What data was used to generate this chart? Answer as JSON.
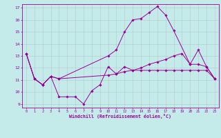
{
  "xlabel": "Windchill (Refroidissement éolien,°C)",
  "xlim": [
    -0.5,
    23.5
  ],
  "ylim": [
    8.7,
    17.3
  ],
  "xticks": [
    0,
    1,
    2,
    3,
    4,
    5,
    6,
    7,
    8,
    9,
    10,
    11,
    12,
    13,
    14,
    15,
    16,
    17,
    18,
    19,
    20,
    21,
    22,
    23
  ],
  "yticks": [
    9,
    10,
    11,
    12,
    13,
    14,
    15,
    16,
    17
  ],
  "background_color": "#c5eaea",
  "line_color": "#990099",
  "grid_color": "#b0c8c8",
  "line1_x": [
    0,
    1,
    2,
    3,
    4,
    5,
    6,
    7,
    8,
    9,
    10,
    11,
    12,
    13,
    14,
    15,
    16,
    17,
    18,
    19,
    20,
    21,
    22,
    23
  ],
  "line1_y": [
    13.2,
    11.1,
    10.6,
    11.3,
    9.6,
    9.6,
    9.6,
    9.0,
    10.1,
    10.6,
    12.1,
    11.5,
    12.1,
    11.8,
    11.8,
    11.8,
    11.8,
    11.8,
    11.8,
    11.8,
    11.8,
    11.8,
    11.8,
    11.1
  ],
  "line2_x": [
    0,
    1,
    2,
    3,
    4,
    10,
    11,
    12,
    13,
    14,
    15,
    16,
    17,
    18,
    20,
    21,
    22,
    23
  ],
  "line2_y": [
    13.2,
    11.1,
    10.6,
    11.3,
    11.1,
    13.0,
    13.5,
    15.0,
    16.0,
    16.1,
    16.6,
    17.1,
    16.4,
    15.1,
    12.3,
    13.5,
    12.1,
    11.1
  ],
  "line3_x": [
    0,
    1,
    2,
    3,
    4,
    10,
    11,
    12,
    13,
    14,
    15,
    16,
    17,
    18,
    19,
    20,
    21,
    22,
    23
  ],
  "line3_y": [
    13.2,
    11.1,
    10.6,
    11.3,
    11.1,
    11.4,
    11.5,
    11.7,
    11.8,
    12.0,
    12.3,
    12.5,
    12.7,
    13.0,
    13.2,
    12.3,
    12.3,
    12.1,
    11.1
  ]
}
